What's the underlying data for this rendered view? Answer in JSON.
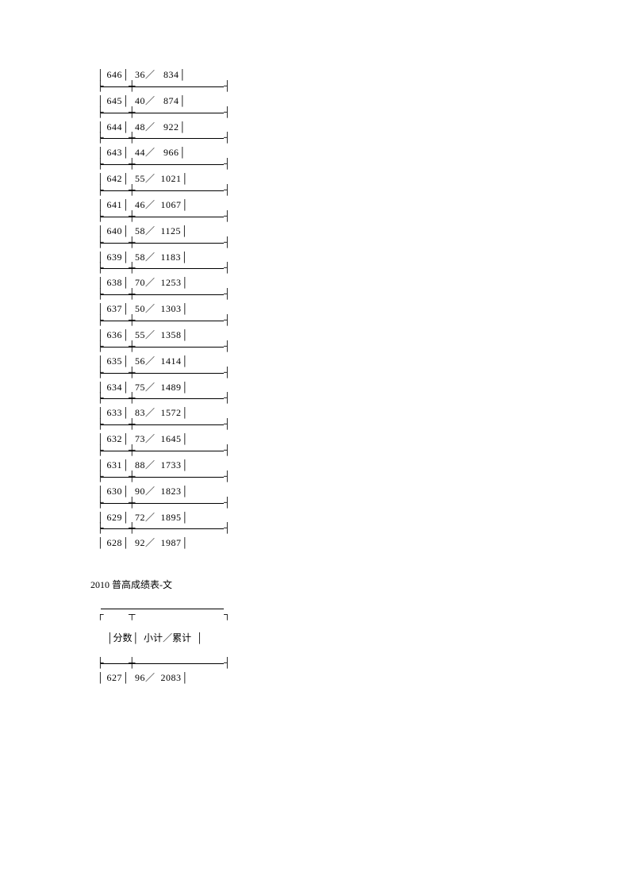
{
  "table1": {
    "col_labels": {
      "score": "分数",
      "count": "小计",
      "cumulative": "累计"
    },
    "rows": [
      {
        "score": "646",
        "count": "36",
        "cumulative": "834"
      },
      {
        "score": "645",
        "count": "40",
        "cumulative": "874"
      },
      {
        "score": "644",
        "count": "48",
        "cumulative": "922"
      },
      {
        "score": "643",
        "count": "44",
        "cumulative": "966"
      },
      {
        "score": "642",
        "count": "55",
        "cumulative": "1021"
      },
      {
        "score": "641",
        "count": "46",
        "cumulative": "1067"
      },
      {
        "score": "640",
        "count": "58",
        "cumulative": "1125"
      },
      {
        "score": "639",
        "count": "58",
        "cumulative": "1183"
      },
      {
        "score": "638",
        "count": "70",
        "cumulative": "1253"
      },
      {
        "score": "637",
        "count": "50",
        "cumulative": "1303"
      },
      {
        "score": "636",
        "count": "55",
        "cumulative": "1358"
      },
      {
        "score": "635",
        "count": "56",
        "cumulative": "1414"
      },
      {
        "score": "634",
        "count": "75",
        "cumulative": "1489"
      },
      {
        "score": "633",
        "count": "83",
        "cumulative": "1572"
      },
      {
        "score": "632",
        "count": "73",
        "cumulative": "1645"
      },
      {
        "score": "631",
        "count": "88",
        "cumulative": "1733"
      },
      {
        "score": "630",
        "count": "90",
        "cumulative": "1823"
      },
      {
        "score": "629",
        "count": "72",
        "cumulative": "1895"
      },
      {
        "score": "628",
        "count": "92",
        "cumulative": "1987"
      }
    ]
  },
  "section2_title": "2010 普高成绩表-文",
  "table2": {
    "header": {
      "score": "分数",
      "count": "小计",
      "cumulative": "累计"
    },
    "rows": [
      {
        "score": "627",
        "count": "96",
        "cumulative": "2083"
      }
    ]
  },
  "separator": "／",
  "pipe": "│",
  "tick_char": "├",
  "tick_end": "┤"
}
